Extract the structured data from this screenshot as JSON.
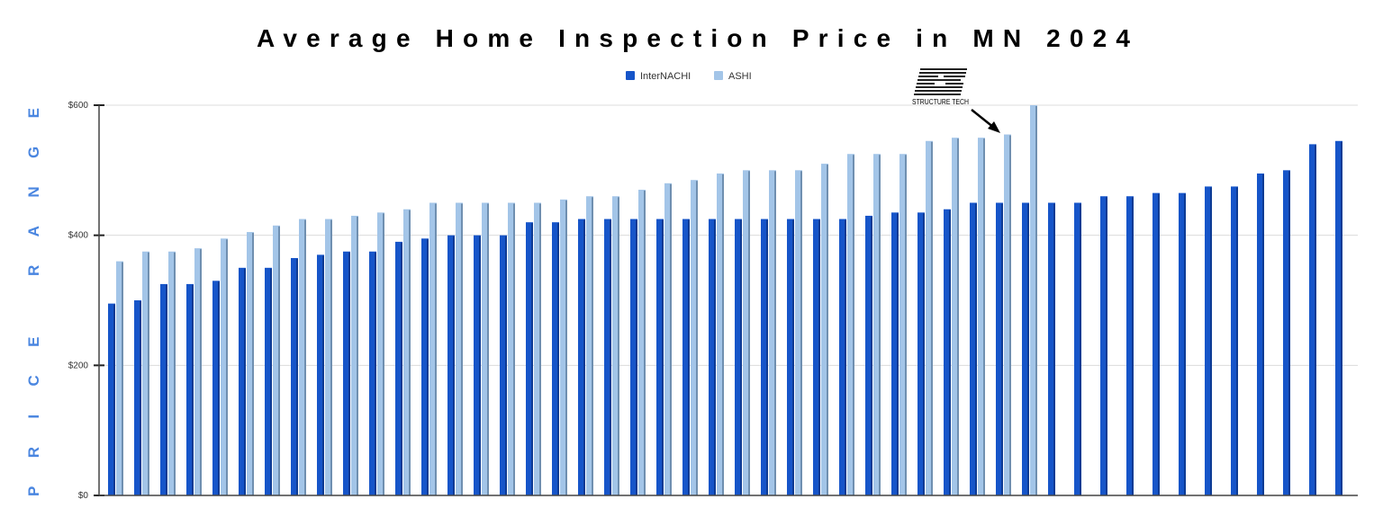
{
  "chart_data": {
    "type": "bar",
    "title": "Average Home Inspection Price in MN 2024",
    "ylabel": "PRICE RANGE",
    "xlabel": "",
    "ylim": [
      0,
      600
    ],
    "yticks": [
      0,
      200,
      400,
      600
    ],
    "ytick_labels": [
      "$0",
      "$200",
      "$400",
      "$600"
    ],
    "grid": true,
    "legend_position": "top",
    "series": [
      {
        "name": "InterNACHI",
        "color": "#1655c9",
        "values": [
          295,
          300,
          325,
          325,
          330,
          350,
          350,
          365,
          370,
          375,
          375,
          390,
          395,
          400,
          400,
          400,
          420,
          420,
          425,
          425,
          425,
          425,
          425,
          425,
          425,
          425,
          425,
          425,
          425,
          430,
          435,
          435,
          440,
          450,
          450,
          450,
          450,
          450,
          460,
          460,
          465,
          465,
          475,
          475,
          495,
          500,
          540,
          545
        ]
      },
      {
        "name": "ASHI",
        "color": "#a3c5e8",
        "values": [
          360,
          375,
          375,
          380,
          395,
          405,
          415,
          425,
          425,
          430,
          435,
          440,
          450,
          450,
          450,
          450,
          450,
          455,
          460,
          460,
          470,
          480,
          485,
          495,
          500,
          500,
          500,
          510,
          525,
          525,
          525,
          545,
          550,
          550,
          555,
          600
        ]
      }
    ],
    "annotation": {
      "logo_text": "STRUCTURE TECH",
      "points_to": "ASHI bar 35"
    }
  }
}
